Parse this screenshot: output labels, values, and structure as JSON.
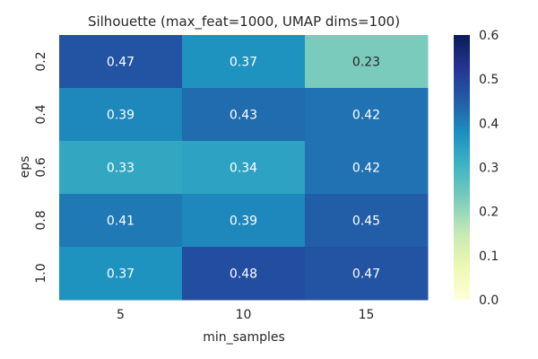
{
  "chart_data": {
    "type": "heatmap",
    "title": "Silhouette (max_feat=1000, UMAP dims=100)",
    "xlabel": "min_samples",
    "ylabel": "eps",
    "x_categories": [
      "5",
      "10",
      "15"
    ],
    "y_categories": [
      "0.2",
      "0.4",
      "0.6",
      "0.8",
      "1.0"
    ],
    "values": [
      [
        0.47,
        0.37,
        0.23
      ],
      [
        0.39,
        0.43,
        0.42
      ],
      [
        0.33,
        0.34,
        0.42
      ],
      [
        0.41,
        0.39,
        0.45
      ],
      [
        0.37,
        0.48,
        0.47
      ]
    ],
    "cell_labels": [
      [
        "0.47",
        "0.37",
        "0.23"
      ],
      [
        "0.39",
        "0.43",
        "0.42"
      ],
      [
        "0.33",
        "0.34",
        "0.42"
      ],
      [
        "0.41",
        "0.39",
        "0.45"
      ],
      [
        "0.37",
        "0.48",
        "0.47"
      ]
    ],
    "colorbar": {
      "range": [
        0.0,
        0.6
      ],
      "ticks": [
        "0.0",
        "0.1",
        "0.2",
        "0.3",
        "0.4",
        "0.5",
        "0.6"
      ],
      "colormap": "YlGnBu"
    }
  }
}
